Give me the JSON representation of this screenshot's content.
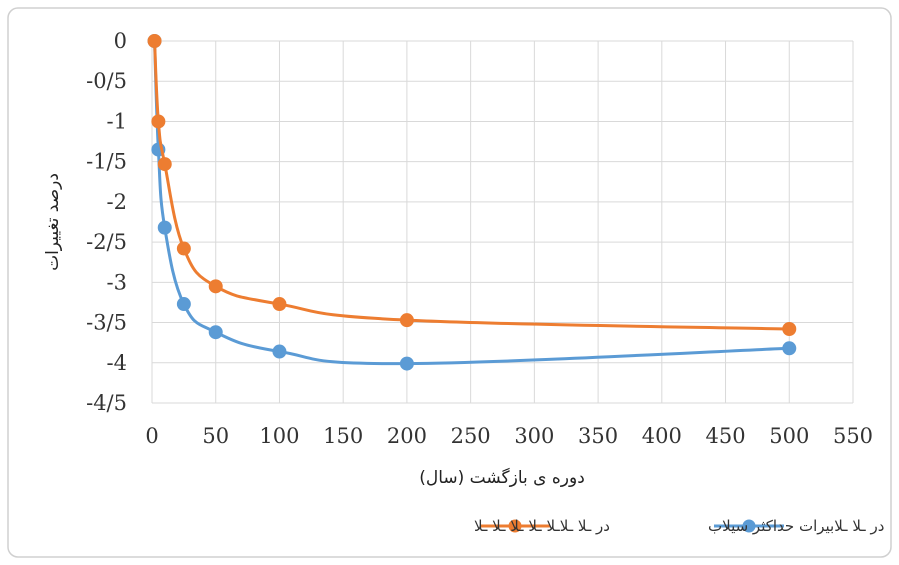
{
  "chart_data": {
    "type": "scatter",
    "xlabel": "دوره ی بازگشت (سال)",
    "ylabel": "درصد تغییرات",
    "xlim": [
      0,
      550
    ],
    "ylim": [
      -4.5,
      0
    ],
    "x_ticks": [
      0,
      50,
      100,
      150,
      200,
      250,
      300,
      350,
      400,
      450,
      500,
      550
    ],
    "x_tick_labels": [
      "0",
      "50",
      "100",
      "150",
      "200",
      "250",
      "300",
      "350",
      "400",
      "450",
      "500",
      "550"
    ],
    "y_ticks": [
      0,
      -0.5,
      -1,
      -1.5,
      -2,
      -2.5,
      -3,
      -3.5,
      -4,
      -4.5
    ],
    "y_tick_labels": [
      "0",
      "-0/5",
      "-1",
      "-1/5",
      "-2",
      "-2/5",
      "-3",
      "-3/5",
      "-4",
      "-4/5"
    ],
    "grid": true,
    "legend_position": "bottom",
    "smooth": true,
    "series": [
      {
        "name": "در ـلا ـلابیرات حداکثر سیلاب",
        "color": "#5b9bd5",
        "x": [
          2,
          5,
          10,
          25,
          50,
          100,
          200,
          500
        ],
        "y": [
          0,
          -1.35,
          -2.32,
          -3.27,
          -3.62,
          -3.86,
          -4.01,
          -3.82
        ]
      },
      {
        "name": "در ـلا ـلاـلا ـلا ـلا ـلا ـلا",
        "color": "#ed7d31",
        "x": [
          2,
          5,
          10,
          25,
          50,
          100,
          200,
          500
        ],
        "y": [
          0,
          -1.0,
          -1.53,
          -2.58,
          -3.05,
          -3.27,
          -3.47,
          -3.58
        ]
      }
    ]
  }
}
